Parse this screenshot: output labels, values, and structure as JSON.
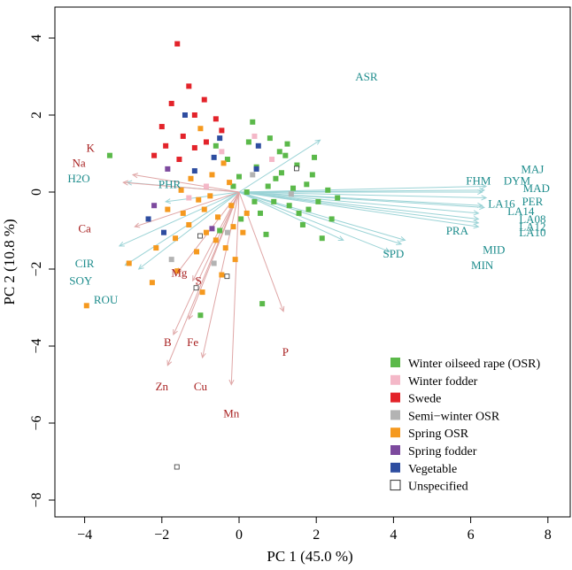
{
  "chart_data": {
    "type": "scatter",
    "subtype": "pca-biplot",
    "xlabel": "PC 1 (45.0 %)",
    "ylabel": "PC 2 (10.8 %)",
    "xlim": [
      -5,
      8.2
    ],
    "ylim": [
      -8.3,
      5
    ],
    "xticks": [
      -4,
      -2,
      0,
      2,
      4,
      6,
      8
    ],
    "yticks": [
      -8,
      -6,
      -4,
      -2,
      0,
      2,
      4
    ],
    "legend_position": "bottom-right",
    "colors": {
      "osr": "#5bb94a",
      "winter_fodder": "#f4b8c8",
      "swede": "#e3232a",
      "semi_winter": "#b3b3b3",
      "spring_osr": "#f5991f",
      "spring_fodder": "#7d4a9e",
      "vegetable": "#2e4da0",
      "unspecified": "#ffffff",
      "vec_cyan": "#9bd3d6",
      "vec_pink": "#dfa6a6",
      "lab_cyan": "#1d8c8c",
      "lab_red": "#a82020"
    },
    "legend": [
      {
        "key": "osr",
        "label": "Winter oilseed rape (OSR)"
      },
      {
        "key": "winter_fodder",
        "label": "Winter fodder"
      },
      {
        "key": "swede",
        "label": "Swede"
      },
      {
        "key": "semi_winter",
        "label": "Semi−winter OSR"
      },
      {
        "key": "spring_osr",
        "label": "Spring OSR"
      },
      {
        "key": "spring_fodder",
        "label": "Spring fodder"
      },
      {
        "key": "vegetable",
        "label": "Vegetable"
      },
      {
        "key": "unspecified",
        "label": "Unspecified"
      }
    ],
    "loadings": [
      {
        "name": "ASR",
        "x": 2.1,
        "y": 1.35,
        "group": "cyan",
        "lx": 3.3,
        "ly": 2.9
      },
      {
        "name": "MAJ",
        "x": 6.4,
        "y": 0.15,
        "group": "cyan",
        "lx": 7.6,
        "ly": 0.5
      },
      {
        "name": "FHM",
        "x": 6.35,
        "y": 0.05,
        "group": "cyan",
        "lx": 6.2,
        "ly": 0.2
      },
      {
        "name": "DYM",
        "x": 6.3,
        "y": 0.0,
        "group": "cyan",
        "lx": 7.2,
        "ly": 0.2
      },
      {
        "name": "MAD",
        "x": 6.4,
        "y": -0.15,
        "group": "cyan",
        "lx": 7.7,
        "ly": 0.0
      },
      {
        "name": "LA16",
        "x": 6.3,
        "y": -0.35,
        "group": "cyan",
        "lx": 6.8,
        "ly": -0.4
      },
      {
        "name": "PER",
        "x": 6.35,
        "y": -0.4,
        "group": "cyan",
        "lx": 7.6,
        "ly": -0.35
      },
      {
        "name": "LA14",
        "x": 6.2,
        "y": -0.55,
        "group": "cyan",
        "lx": 7.3,
        "ly": -0.6
      },
      {
        "name": "LA08",
        "x": 6.2,
        "y": -0.7,
        "group": "cyan",
        "lx": 7.6,
        "ly": -0.8
      },
      {
        "name": "LA12",
        "x": 6.2,
        "y": -0.8,
        "group": "cyan",
        "lx": 7.6,
        "ly": -1.0
      },
      {
        "name": "LA10",
        "x": 6.2,
        "y": -0.9,
        "group": "cyan",
        "lx": 7.6,
        "ly": -1.15
      },
      {
        "name": "PRA",
        "x": 4.3,
        "y": -1.25,
        "group": "cyan",
        "lx": 5.65,
        "ly": -1.1
      },
      {
        "name": "MID",
        "x": 4.2,
        "y": -1.35,
        "group": "cyan",
        "lx": 6.6,
        "ly": -1.6
      },
      {
        "name": "MIN",
        "x": 3.9,
        "y": -1.55,
        "group": "cyan",
        "lx": 6.3,
        "ly": -2.0
      },
      {
        "name": "SPD",
        "x": 2.7,
        "y": -1.25,
        "group": "cyan",
        "lx": 4.0,
        "ly": -1.7
      },
      {
        "name": "H2O",
        "x": -2.9,
        "y": 0.25,
        "group": "cyan",
        "lx": -4.15,
        "ly": 0.25
      },
      {
        "name": "CIR",
        "x": -3.1,
        "y": -1.4,
        "group": "cyan",
        "lx": -4.0,
        "ly": -1.95
      },
      {
        "name": "SOY",
        "x": -2.95,
        "y": -1.9,
        "group": "cyan",
        "lx": -4.1,
        "ly": -2.4
      },
      {
        "name": "ROU",
        "x": -2.6,
        "y": -2.0,
        "group": "cyan",
        "lx": -3.45,
        "ly": -2.9
      },
      {
        "name": "PHR",
        "x": -1.9,
        "y": -0.25,
        "group": "cyan",
        "lx": -1.8,
        "ly": 0.1
      },
      {
        "name": "K",
        "x": -2.75,
        "y": 0.45,
        "group": "pink",
        "lx": -3.85,
        "ly": 1.05
      },
      {
        "name": "Na",
        "x": -3.0,
        "y": 0.25,
        "group": "pink",
        "lx": -4.15,
        "ly": 0.65
      },
      {
        "name": "Ca",
        "x": -2.7,
        "y": -0.9,
        "group": "pink",
        "lx": -4.0,
        "ly": -1.05
      },
      {
        "name": "Mg",
        "x": -1.6,
        "y": -2.1,
        "group": "pink",
        "lx": -1.55,
        "ly": -2.2
      },
      {
        "name": "S",
        "x": -1.2,
        "y": -2.3,
        "group": "pink",
        "lx": -1.05,
        "ly": -2.4
      },
      {
        "name": "B",
        "x": -1.7,
        "y": -3.7,
        "group": "pink",
        "lx": -1.85,
        "ly": -4.0
      },
      {
        "name": "Fe",
        "x": -1.3,
        "y": -3.3,
        "group": "pink",
        "lx": -1.2,
        "ly": -4.0
      },
      {
        "name": "Zn",
        "x": -1.85,
        "y": -4.5,
        "group": "pink",
        "lx": -2.0,
        "ly": -5.15
      },
      {
        "name": "Cu",
        "x": -0.95,
        "y": -4.3,
        "group": "pink",
        "lx": -1.0,
        "ly": -5.15
      },
      {
        "name": "P",
        "x": 1.15,
        "y": -3.1,
        "group": "pink",
        "lx": 1.2,
        "ly": -4.25
      },
      {
        "name": "Mn",
        "x": -0.2,
        "y": -5.0,
        "group": "pink",
        "lx": -0.2,
        "ly": -5.85
      }
    ],
    "points": [
      {
        "g": "osr",
        "x": 0.35,
        "y": 1.82
      },
      {
        "g": "osr",
        "x": 1.2,
        "y": 0.95
      },
      {
        "g": "osr",
        "x": 0.8,
        "y": 1.4
      },
      {
        "g": "osr",
        "x": 1.5,
        "y": 0.7
      },
      {
        "g": "osr",
        "x": -0.3,
        "y": 0.85
      },
      {
        "g": "osr",
        "x": 1.9,
        "y": 0.45
      },
      {
        "g": "osr",
        "x": 2.3,
        "y": 0.05
      },
      {
        "g": "osr",
        "x": 0.2,
        "y": 0.0
      },
      {
        "g": "osr",
        "x": 0.95,
        "y": 0.35
      },
      {
        "g": "osr",
        "x": 1.3,
        "y": -0.35
      },
      {
        "g": "osr",
        "x": 1.65,
        "y": -0.85
      },
      {
        "g": "osr",
        "x": 0.55,
        "y": -0.55
      },
      {
        "g": "osr",
        "x": -0.6,
        "y": 1.2
      },
      {
        "g": "osr",
        "x": 2.05,
        "y": -0.25
      },
      {
        "g": "osr",
        "x": 1.05,
        "y": 1.05
      },
      {
        "g": "osr",
        "x": 0.45,
        "y": 0.65
      },
      {
        "g": "osr",
        "x": 1.75,
        "y": 0.2
      },
      {
        "g": "osr",
        "x": 0.0,
        "y": 0.4
      },
      {
        "g": "osr",
        "x": 2.15,
        "y": -1.2
      },
      {
        "g": "osr",
        "x": 0.7,
        "y": -1.1
      },
      {
        "g": "osr",
        "x": 1.4,
        "y": 0.1
      },
      {
        "g": "osr",
        "x": -0.5,
        "y": -1.0
      },
      {
        "g": "osr",
        "x": -3.35,
        "y": 0.95
      },
      {
        "g": "osr",
        "x": -1.0,
        "y": -3.2
      },
      {
        "g": "osr",
        "x": 0.6,
        "y": -2.9
      },
      {
        "g": "osr",
        "x": 1.95,
        "y": 0.9
      },
      {
        "g": "osr",
        "x": 0.9,
        "y": -0.25
      },
      {
        "g": "osr",
        "x": 1.55,
        "y": -0.55
      },
      {
        "g": "osr",
        "x": 0.25,
        "y": 1.3
      },
      {
        "g": "osr",
        "x": 2.4,
        "y": -0.7
      },
      {
        "g": "osr",
        "x": 1.1,
        "y": 0.5
      },
      {
        "g": "osr",
        "x": 0.05,
        "y": -0.7
      },
      {
        "g": "osr",
        "x": -0.15,
        "y": 0.15
      },
      {
        "g": "osr",
        "x": 1.8,
        "y": -0.45
      },
      {
        "g": "osr",
        "x": 0.75,
        "y": 0.15
      },
      {
        "g": "osr",
        "x": 1.25,
        "y": 1.25
      },
      {
        "g": "osr",
        "x": 2.55,
        "y": -0.15
      },
      {
        "g": "osr",
        "x": 0.4,
        "y": -0.25
      },
      {
        "g": "winter_fodder",
        "x": 0.4,
        "y": 1.45
      },
      {
        "g": "winter_fodder",
        "x": -0.85,
        "y": 0.15
      },
      {
        "g": "winter_fodder",
        "x": -1.3,
        "y": -0.15
      },
      {
        "g": "winter_fodder",
        "x": -0.45,
        "y": 1.05
      },
      {
        "g": "winter_fodder",
        "x": 0.85,
        "y": 0.85
      },
      {
        "g": "swede",
        "x": -1.6,
        "y": 3.85
      },
      {
        "g": "swede",
        "x": -1.15,
        "y": 2.0
      },
      {
        "g": "swede",
        "x": -1.75,
        "y": 2.3
      },
      {
        "g": "swede",
        "x": -0.9,
        "y": 2.4
      },
      {
        "g": "swede",
        "x": -2.0,
        "y": 1.7
      },
      {
        "g": "swede",
        "x": -1.45,
        "y": 1.45
      },
      {
        "g": "swede",
        "x": -0.6,
        "y": 1.9
      },
      {
        "g": "swede",
        "x": -1.9,
        "y": 1.2
      },
      {
        "g": "swede",
        "x": -1.15,
        "y": 1.15
      },
      {
        "g": "swede",
        "x": -0.45,
        "y": 1.6
      },
      {
        "g": "swede",
        "x": -1.55,
        "y": 0.85
      },
      {
        "g": "swede",
        "x": -0.85,
        "y": 1.3
      },
      {
        "g": "swede",
        "x": -2.2,
        "y": 0.95
      },
      {
        "g": "swede",
        "x": -1.3,
        "y": 2.75
      },
      {
        "g": "semi_winter",
        "x": -1.75,
        "y": -1.75
      },
      {
        "g": "semi_winter",
        "x": -0.3,
        "y": -1.05
      },
      {
        "g": "semi_winter",
        "x": -0.65,
        "y": -1.85
      },
      {
        "g": "semi_winter",
        "x": 0.35,
        "y": 0.45
      },
      {
        "g": "semi_winter",
        "x": 1.35,
        "y": -0.05
      },
      {
        "g": "spring_osr",
        "x": -3.95,
        "y": -2.95
      },
      {
        "g": "spring_osr",
        "x": -2.85,
        "y": -1.85
      },
      {
        "g": "spring_osr",
        "x": -2.25,
        "y": -2.35
      },
      {
        "g": "spring_osr",
        "x": -1.05,
        "y": -0.2
      },
      {
        "g": "spring_osr",
        "x": -0.55,
        "y": -0.65
      },
      {
        "g": "spring_osr",
        "x": -1.45,
        "y": -0.55
      },
      {
        "g": "spring_osr",
        "x": -0.2,
        "y": -0.35
      },
      {
        "g": "spring_osr",
        "x": -0.85,
        "y": -1.05
      },
      {
        "g": "spring_osr",
        "x": -0.35,
        "y": -1.45
      },
      {
        "g": "spring_osr",
        "x": -1.25,
        "y": 0.35
      },
      {
        "g": "spring_osr",
        "x": -0.7,
        "y": 0.45
      },
      {
        "g": "spring_osr",
        "x": -0.1,
        "y": -1.75
      },
      {
        "g": "spring_osr",
        "x": -1.65,
        "y": -1.2
      },
      {
        "g": "spring_osr",
        "x": -0.95,
        "y": -2.6
      },
      {
        "g": "spring_osr",
        "x": -0.45,
        "y": -2.15
      },
      {
        "g": "spring_osr",
        "x": 0.1,
        "y": -1.05
      },
      {
        "g": "spring_osr",
        "x": -1.85,
        "y": -0.45
      },
      {
        "g": "spring_osr",
        "x": -1.1,
        "y": -1.55
      },
      {
        "g": "spring_osr",
        "x": -0.75,
        "y": -0.1
      },
      {
        "g": "spring_osr",
        "x": -1.5,
        "y": 0.05
      },
      {
        "g": "spring_osr",
        "x": -0.25,
        "y": 0.25
      },
      {
        "g": "spring_osr",
        "x": -2.15,
        "y": -1.45
      },
      {
        "g": "spring_osr",
        "x": 0.2,
        "y": -0.55
      },
      {
        "g": "spring_osr",
        "x": -1.3,
        "y": -0.85
      },
      {
        "g": "spring_osr",
        "x": -0.6,
        "y": -1.25
      },
      {
        "g": "spring_osr",
        "x": -1.0,
        "y": 1.65
      },
      {
        "g": "spring_osr",
        "x": -0.9,
        "y": -0.45
      },
      {
        "g": "spring_osr",
        "x": -0.15,
        "y": -0.9
      },
      {
        "g": "spring_osr",
        "x": -1.6,
        "y": -2.05
      },
      {
        "g": "spring_osr",
        "x": -0.4,
        "y": 0.75
      },
      {
        "g": "spring_fodder",
        "x": -2.2,
        "y": -0.35
      },
      {
        "g": "spring_fodder",
        "x": -0.7,
        "y": -0.95
      },
      {
        "g": "spring_fodder",
        "x": -1.85,
        "y": 0.6
      },
      {
        "g": "vegetable",
        "x": -1.95,
        "y": -1.05
      },
      {
        "g": "vegetable",
        "x": -2.35,
        "y": -0.7
      },
      {
        "g": "vegetable",
        "x": -1.4,
        "y": 2.0
      },
      {
        "g": "vegetable",
        "x": -0.5,
        "y": 1.4
      },
      {
        "g": "vegetable",
        "x": 0.5,
        "y": 1.2
      },
      {
        "g": "vegetable",
        "x": -0.65,
        "y": 0.9
      },
      {
        "g": "vegetable",
        "x": -1.15,
        "y": 0.55
      },
      {
        "g": "vegetable",
        "x": 0.45,
        "y": 0.6
      },
      {
        "g": "unspecified",
        "x": -1.6,
        "y": -7.15
      },
      {
        "g": "unspecified",
        "x": -1.1,
        "y": -2.5
      },
      {
        "g": "unspecified",
        "x": -0.3,
        "y": -2.2
      },
      {
        "g": "unspecified",
        "x": -1.0,
        "y": -1.15
      },
      {
        "g": "unspecified",
        "x": 1.5,
        "y": 0.6
      }
    ]
  }
}
